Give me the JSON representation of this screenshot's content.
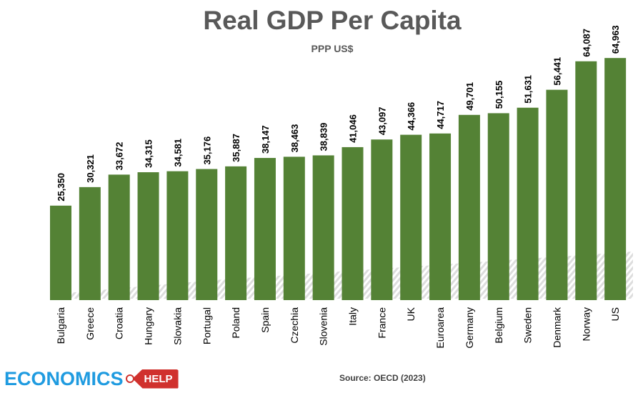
{
  "chart_data": {
    "type": "bar",
    "title": "Real GDP Per Capita",
    "subtitle": "PPP US$",
    "categories": [
      "Bulgaria",
      "Greece",
      "Croatia",
      "Hungary",
      "Slovakia",
      "Portugal",
      "Poland",
      "Spain",
      "Czechia",
      "Slovenia",
      "Italy",
      "France",
      "UK",
      "Euroarea",
      "Germany",
      "Belgium",
      "Sweden",
      "Denmark",
      "Norway",
      "US"
    ],
    "values": [
      25350,
      30321,
      33672,
      34315,
      34581,
      35176,
      35887,
      38147,
      38463,
      38839,
      41046,
      43097,
      44366,
      44717,
      49701,
      50155,
      51631,
      56441,
      64087,
      64963
    ],
    "value_labels": [
      "25,350",
      "30,321",
      "33,672",
      "34,315",
      "34,581",
      "35,176",
      "35,887",
      "38,147",
      "38,463",
      "38,839",
      "41,046",
      "43,097",
      "44,366",
      "44,717",
      "49,701",
      "50,155",
      "51,631",
      "56,441",
      "64,087",
      "64,963"
    ],
    "bar_color": "#548235",
    "xlabel": "",
    "ylabel": "",
    "ylim": [
      0,
      65000
    ],
    "grid": false
  },
  "footer": {
    "logo_main": "ECONOMICS",
    "logo_tag": "HELP",
    "source": "Source:  OECD (2023)"
  },
  "colors": {
    "logo_blue": "#1f9be0",
    "logo_red": "#d0312d",
    "title_gray": "#595959"
  }
}
